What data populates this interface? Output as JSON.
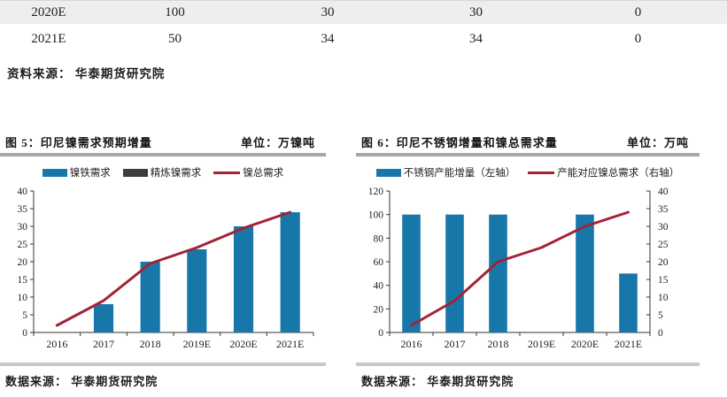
{
  "table": {
    "rows": [
      [
        "2020E",
        "100",
        "30",
        "30",
        "0"
      ],
      [
        "2021E",
        "50",
        "34",
        "34",
        "0"
      ]
    ],
    "source_label": "资料来源：",
    "source_value": "华泰期货研究院"
  },
  "figures": [
    {
      "label": "图 5：",
      "title": "印尼镍需求预期增量",
      "unit": "单位：万镍吨",
      "source_label": "数据来源：",
      "source_value": "华泰期货研究院"
    },
    {
      "label": "图 6：",
      "title": "印尼不锈钢增量和镍总需求量",
      "unit": "单位：万吨",
      "source_label": "数据来源：",
      "source_value": "华泰期货研究院"
    }
  ],
  "colors": {
    "bar_blue": "#1877A9",
    "bar_dark": "#3d3d3d",
    "line_red": "#A32335",
    "axis": "#333333",
    "table_row_alt": "#eeeeee",
    "rule_gray": "#a6a6a6"
  },
  "chart_data": [
    {
      "type": "table",
      "rows": [
        [
          "2020E",
          "100",
          "30",
          "30",
          "0"
        ],
        [
          "2021E",
          "50",
          "34",
          "34",
          "0"
        ]
      ],
      "source": "资料来源：华泰期货研究院"
    },
    {
      "type": "bar",
      "title": "图 5：印尼镍需求预期增量",
      "unit_label": "单位：万镍吨",
      "categories": [
        "2016",
        "2017",
        "2018",
        "2019E",
        "2020E",
        "2021E"
      ],
      "series": [
        {
          "name": "镍铁需求",
          "kind": "bar",
          "color": "#1877A9",
          "axis": "left",
          "values": [
            0,
            8,
            20,
            23.5,
            30,
            34
          ]
        },
        {
          "name": "精炼镍需求",
          "kind": "bar",
          "color": "#3d3d3d",
          "axis": "left",
          "values": [
            0,
            0,
            0,
            0,
            0,
            0
          ]
        },
        {
          "name": "镍总需求",
          "kind": "line",
          "color": "#A32335",
          "axis": "left",
          "values": [
            2,
            9,
            19.5,
            24,
            29.5,
            34
          ]
        }
      ],
      "left_axis": {
        "min": 0,
        "max": 40,
        "step": 5
      },
      "grid": false,
      "legend_position": "top",
      "source": "数据来源：华泰期货研究院"
    },
    {
      "type": "bar",
      "title": "图 6：印尼不锈钢增量和镍总需求量",
      "unit_label": "单位：万吨",
      "categories": [
        "2016",
        "2017",
        "2018",
        "2019E",
        "2020E",
        "2021E"
      ],
      "series": [
        {
          "name": "不锈钢产能增量（左轴）",
          "kind": "bar",
          "color": "#1877A9",
          "axis": "left",
          "values": [
            100,
            100,
            100,
            0,
            100,
            50
          ]
        },
        {
          "name": "产能对应镍总需求（右轴）",
          "kind": "line",
          "color": "#A32335",
          "axis": "right",
          "values": [
            2,
            9,
            20,
            24,
            30,
            34
          ]
        }
      ],
      "left_axis": {
        "min": 0,
        "max": 120,
        "step": 20
      },
      "right_axis": {
        "min": 0,
        "max": 40,
        "step": 5
      },
      "grid": false,
      "legend_position": "top",
      "source": "数据来源：华泰期货研究院"
    }
  ]
}
